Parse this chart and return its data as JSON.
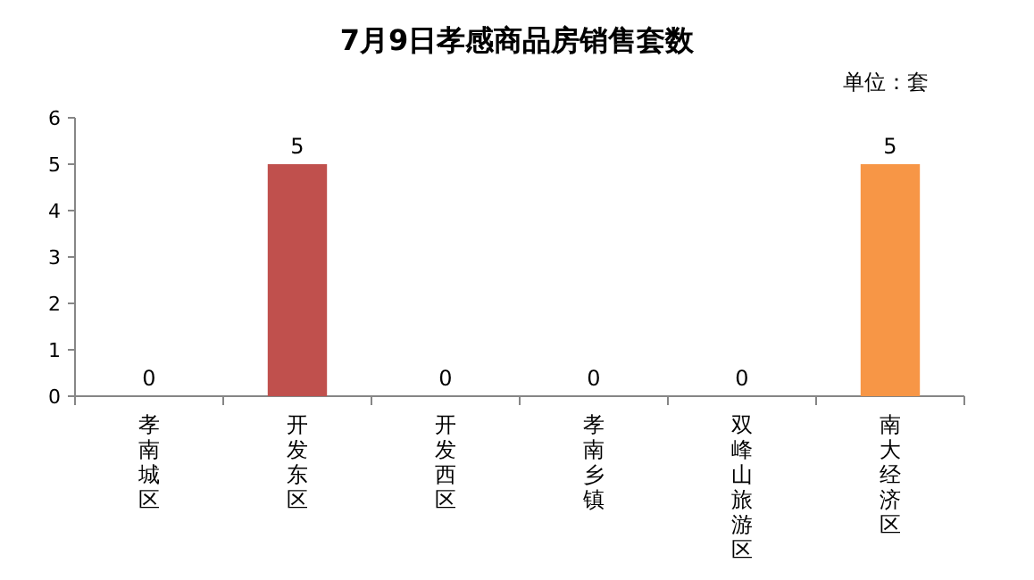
{
  "chart_data": {
    "type": "bar",
    "title": "7月9日孝感商品房销售套数",
    "annotations": [
      "单位：套"
    ],
    "categories": [
      "孝南城区",
      "开发东区",
      "开发西区",
      "孝南乡镇",
      "双峰山旅游区",
      "南大经济区"
    ],
    "values": [
      0,
      5,
      0,
      0,
      0,
      5
    ],
    "colors": [
      "#c0504d",
      "#c0504d",
      "#c0504d",
      "#c0504d",
      "#c0504d",
      "#f79646"
    ],
    "ylim": [
      0,
      6
    ],
    "yticks": [
      0,
      1,
      2,
      3,
      4,
      5,
      6
    ],
    "data_labels": true,
    "grid": false
  }
}
